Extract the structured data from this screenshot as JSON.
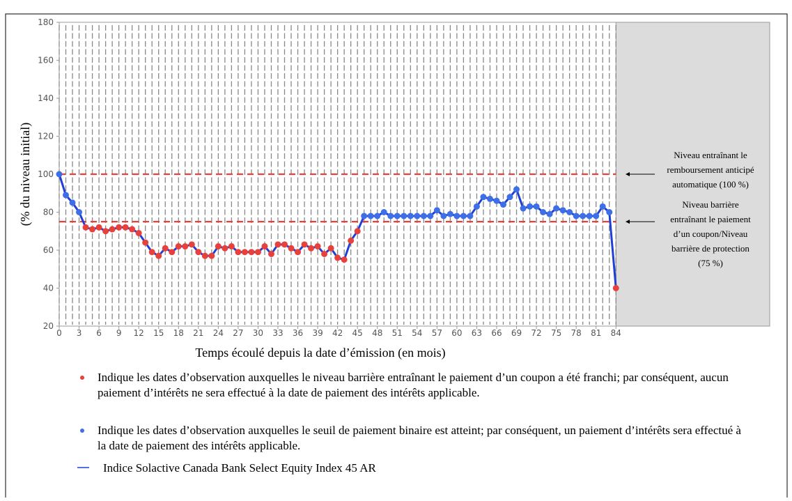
{
  "chart_data": {
    "type": "line",
    "x_label": "Temps écoulé depuis la date d’émission (en mois)",
    "y_label": "(% du niveau initial)",
    "x": [
      0,
      1,
      2,
      3,
      4,
      5,
      6,
      7,
      8,
      9,
      10,
      11,
      12,
      13,
      14,
      15,
      16,
      17,
      18,
      19,
      20,
      21,
      22,
      23,
      24,
      25,
      26,
      27,
      28,
      29,
      30,
      31,
      32,
      33,
      34,
      35,
      36,
      37,
      38,
      39,
      40,
      41,
      42,
      43,
      44,
      45,
      46,
      47,
      48,
      49,
      50,
      51,
      52,
      53,
      54,
      55,
      56,
      57,
      58,
      59,
      60,
      61,
      62,
      63,
      64,
      65,
      66,
      67,
      68,
      69,
      70,
      71,
      72,
      73,
      74,
      75,
      76,
      77,
      78,
      79,
      80,
      81,
      82,
      83,
      84
    ],
    "series": [
      {
        "name": "Indice Solactive Canada Bank Select Equity Index 45 AR",
        "color": "#1f3fd6",
        "values": [
          100,
          89,
          85,
          80,
          72,
          71,
          72,
          70,
          71,
          72,
          72,
          71,
          69,
          64,
          59,
          57,
          61,
          59,
          62,
          62,
          63,
          59,
          57,
          57,
          62,
          61,
          62,
          59,
          59,
          59,
          59,
          62,
          58,
          63,
          63,
          61,
          59,
          63,
          61,
          62,
          58,
          61,
          56,
          55,
          65,
          70,
          78,
          78,
          78,
          80,
          78,
          78,
          78,
          78,
          78,
          78,
          78,
          81,
          78,
          79,
          78,
          78,
          78,
          83,
          88,
          87,
          86,
          84,
          88,
          92,
          82,
          83,
          83,
          80,
          79,
          82,
          81,
          80,
          78,
          78,
          78,
          78,
          83,
          80,
          40
        ]
      }
    ],
    "markers": [
      {
        "color": "#e8413c",
        "label": "Indique les dates d’observation auxquelles le niveau barrière entraînant le paiement d’un coupon a été franchi; par conséquent, aucun paiement d’intérêts ne sera effectué à la date de paiement des intérêts applicable."
      },
      {
        "color": "#3f6fe6",
        "label": "Indique les dates d’observation auxquelles le seuil de paiement binaire est atteint; par conséquent, un paiement d’intérêts sera effectué à la date de paiement des intérêts applicable."
      }
    ],
    "reference_lines": [
      {
        "value": 100,
        "color": "#e8413c",
        "label": [
          "Niveau entraînant  le",
          "remboursement anticipé",
          "automatique (100 %)"
        ]
      },
      {
        "value": 75,
        "color": "#e8413c",
        "label": [
          "Niveau barrière",
          "entraînant le paiement",
          "d’un coupon/Niveau",
          "barrière de protection",
          "(75 %)"
        ]
      }
    ],
    "shade_from": 84,
    "xlim": [
      0,
      107.2
    ],
    "ylim": [
      20,
      180
    ],
    "xticks": [
      0,
      3,
      6,
      9,
      12,
      15,
      18,
      21,
      24,
      27,
      30,
      33,
      36,
      39,
      42,
      45,
      48,
      51,
      54,
      57,
      60,
      63,
      66,
      69,
      72,
      75,
      78,
      81,
      84
    ],
    "yticks": [
      20,
      40,
      60,
      80,
      100,
      120,
      140,
      160,
      180
    ]
  }
}
